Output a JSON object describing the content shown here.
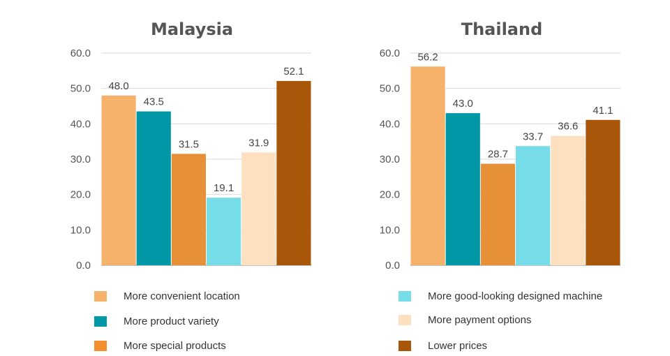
{
  "chart_data": [
    {
      "type": "bar",
      "title": "Malaysia",
      "ylim": [
        0,
        60
      ],
      "yticks": [
        "0.0",
        "10.0",
        "20.0",
        "30.0",
        "40.0",
        "50.0",
        "60.0"
      ],
      "grid": true,
      "series": [
        {
          "name": "More convenient location",
          "value": 48.0,
          "label": "48.0",
          "color": "#F6B26B"
        },
        {
          "name": "More product variety",
          "value": 43.5,
          "label": "43.5",
          "color": "#0097A7"
        },
        {
          "name": "More special products",
          "value": 31.5,
          "label": "31.5",
          "color": "#E69138"
        },
        {
          "name": "More good-looking designed machine",
          "value": 19.1,
          "label": "19.1",
          "color": "#76DDE8"
        },
        {
          "name": "More payment options",
          "value": 31.9,
          "label": "31.9",
          "color": "#FCE0C0"
        },
        {
          "name": "Lower prices",
          "value": 52.1,
          "label": "52.1",
          "color": "#A8570A"
        }
      ]
    },
    {
      "type": "bar",
      "title": "Thailand",
      "ylim": [
        0,
        60
      ],
      "yticks": [
        "0.0",
        "10.0",
        "20.0",
        "30.0",
        "40.0",
        "50.0",
        "60.0"
      ],
      "grid": true,
      "series": [
        {
          "name": "More convenient location",
          "value": 56.2,
          "label": "56.2",
          "color": "#F6B26B"
        },
        {
          "name": "More product variety",
          "value": 43.0,
          "label": "43.0",
          "color": "#0097A7"
        },
        {
          "name": "More special products",
          "value": 28.7,
          "label": "28.7",
          "color": "#E69138"
        },
        {
          "name": "More good-looking designed machine",
          "value": 33.7,
          "label": "33.7",
          "color": "#76DDE8"
        },
        {
          "name": "More payment options",
          "value": 36.6,
          "label": "36.6",
          "color": "#FCE0C0"
        },
        {
          "name": "Lower prices",
          "value": 41.1,
          "label": "41.1",
          "color": "#A8570A"
        }
      ]
    }
  ],
  "legend": [
    {
      "label": "More convenient location",
      "color": "#F6B26B"
    },
    {
      "label": "More product variety",
      "color": "#0097A7"
    },
    {
      "label": "More special products",
      "color": "#F28E2B"
    },
    {
      "label": "More good-looking designed machine",
      "color": "#76DDE8"
    },
    {
      "label": "More payment options",
      "color": "#FCE0C0"
    },
    {
      "label": "Lower prices",
      "color": "#A8570A"
    }
  ]
}
